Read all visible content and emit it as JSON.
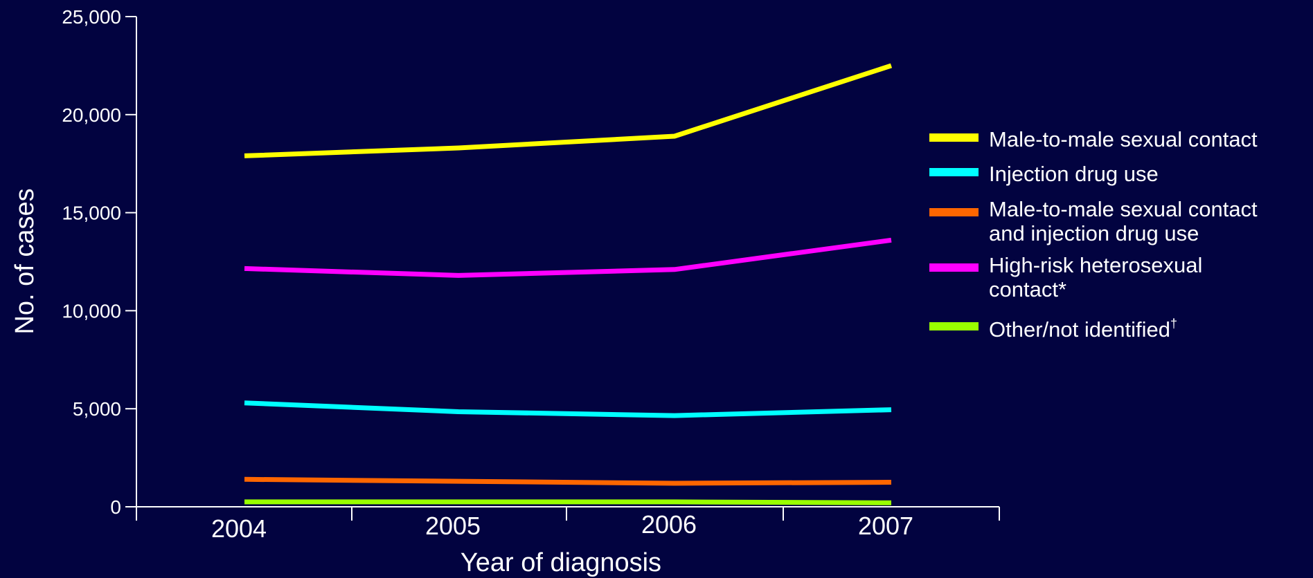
{
  "chart_data": {
    "type": "line",
    "title": "",
    "xlabel": "Year of diagnosis",
    "ylabel": "No. of cases",
    "x": [
      "2004",
      "2005",
      "2006",
      "2007"
    ],
    "ylim": [
      0,
      25000
    ],
    "yticks": [
      0,
      5000,
      10000,
      15000,
      20000,
      25000
    ],
    "ytick_labels": [
      "0",
      "5,000",
      "10,000",
      "15,000",
      "20,000",
      "25,000"
    ],
    "grid": false,
    "legend_position": "right",
    "series": [
      {
        "name": "Male-to-male sexual contact",
        "legend_lines": [
          "Male-to-male sexual contact"
        ],
        "color": "#ffff00",
        "values": [
          17900,
          18300,
          18900,
          22500
        ]
      },
      {
        "name": "Injection drug use",
        "legend_lines": [
          "Injection drug use"
        ],
        "color": "#00ffff",
        "values": [
          5300,
          4850,
          4650,
          4950
        ]
      },
      {
        "name": "Male-to-male sexual contact and injection drug use",
        "legend_lines": [
          "Male-to-male sexual contact",
          "and injection drug use"
        ],
        "color": "#ff6600",
        "values": [
          1400,
          1300,
          1200,
          1250
        ]
      },
      {
        "name": "High-risk heterosexual contact*",
        "legend_lines": [
          "High-risk heterosexual",
          "contact*"
        ],
        "color": "#ff00ff",
        "values": [
          12150,
          11800,
          12100,
          13600
        ]
      },
      {
        "name": "Other/not identified†",
        "legend_lines": [
          "Other/not identified†"
        ],
        "color": "#99ff00",
        "values": [
          250,
          250,
          250,
          200
        ]
      }
    ]
  }
}
